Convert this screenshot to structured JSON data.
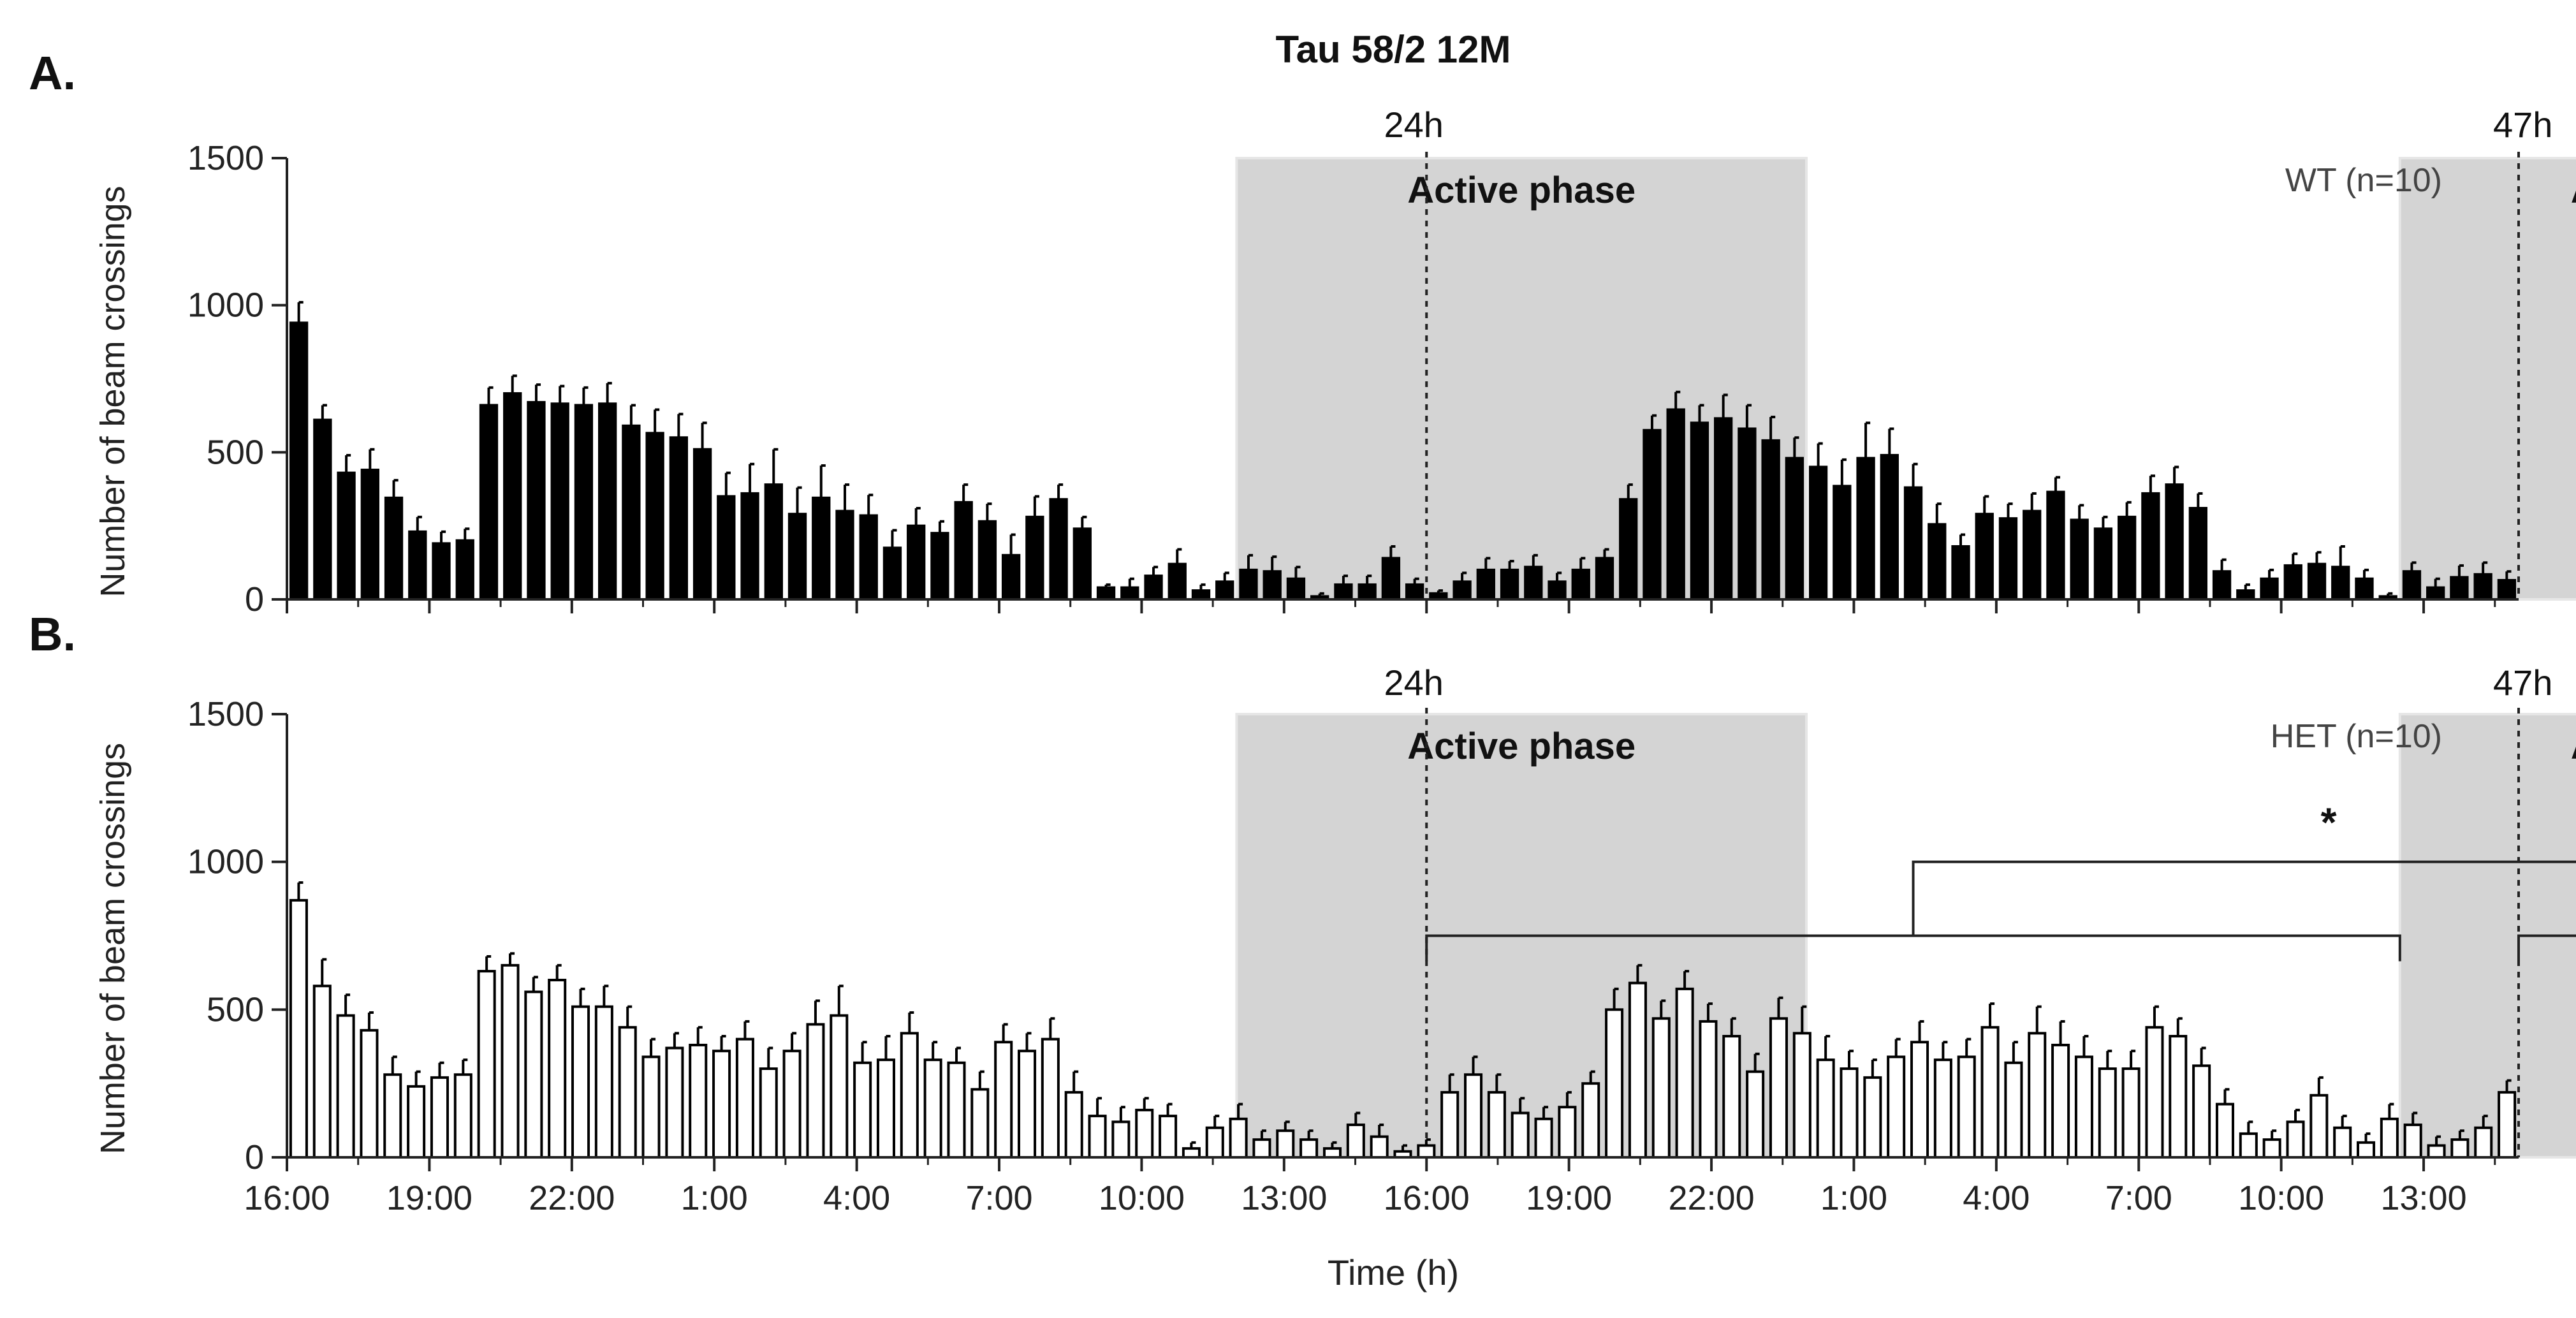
{
  "figure": {
    "title": "Tau 58/2 12M",
    "xlabel": "Time (h)",
    "x_ticks": [
      "16:00",
      "19:00",
      "22:00",
      "1:00",
      "4:00",
      "7:00",
      "10:00",
      "13:00",
      "16:00",
      "19:00",
      "22:00",
      "1:00",
      "4:00",
      "7:00",
      "10:00",
      "13:00"
    ],
    "marker_24h": "24h",
    "marker_47h": "47h",
    "phase_label": "Active phase",
    "significance_label": "*"
  },
  "chart_data": [
    {
      "type": "bar",
      "panel_letter": "A.",
      "ylabel": "Number of beam crossings",
      "ylim": [
        0,
        1500
      ],
      "yticks": [
        0,
        500,
        1000,
        1500
      ],
      "legend": "WT (n=10)",
      "legend_placement": "top-right",
      "bar_color": "#000000",
      "x_unit": "half-hour bins from 16:00 (0 to 47 h)",
      "active_phases": [
        [
          20,
          32
        ],
        [
          44.5,
          56.5
        ]
      ],
      "values": [
        940,
        610,
        430,
        440,
        345,
        230,
        190,
        200,
        660,
        700,
        670,
        665,
        660,
        665,
        590,
        565,
        550,
        510,
        350,
        360,
        390,
        290,
        345,
        300,
        285,
        175,
        250,
        225,
        330,
        265,
        150,
        280,
        340,
        240,
        40,
        40,
        80,
        120,
        30,
        60,
        100,
        95,
        70,
        10,
        50,
        50,
        140,
        50,
        20,
        60,
        100,
        100,
        110,
        60,
        100,
        140,
        340,
        575,
        645,
        600,
        615,
        580,
        540,
        480,
        450,
        385,
        480,
        490,
        380,
        255,
        180,
        290,
        275,
        300,
        365,
        270,
        240,
        280,
        360,
        390,
        310,
        95,
        30,
        70,
        115,
        120,
        110,
        70,
        10,
        95,
        40,
        75,
        85,
        65
      ],
      "errors": [
        70,
        50,
        60,
        70,
        60,
        50,
        40,
        40,
        60,
        60,
        60,
        60,
        60,
        70,
        70,
        80,
        80,
        90,
        80,
        100,
        120,
        90,
        110,
        90,
        70,
        60,
        60,
        40,
        60,
        60,
        70,
        70,
        50,
        40,
        10,
        30,
        30,
        50,
        20,
        30,
        50,
        50,
        40,
        10,
        30,
        30,
        40,
        20,
        10,
        30,
        40,
        30,
        40,
        30,
        40,
        30,
        50,
        50,
        60,
        60,
        80,
        80,
        80,
        70,
        80,
        90,
        120,
        90,
        80,
        70,
        40,
        60,
        50,
        60,
        50,
        50,
        40,
        50,
        60,
        60,
        50,
        40,
        20,
        30,
        40,
        40,
        70,
        30,
        10,
        30,
        30,
        40,
        40,
        30
      ]
    },
    {
      "type": "bar",
      "panel_letter": "B.",
      "ylabel": "Number of beam crossings",
      "ylim": [
        0,
        1500
      ],
      "yticks": [
        0,
        500,
        1000,
        1500
      ],
      "legend": "HET (n=10)",
      "legend_placement": "top-right",
      "bar_color": "#ffffff",
      "x_unit": "half-hour bins from 16:00 (0 to 47 h)",
      "active_phases": [
        [
          20,
          32
        ],
        [
          44.5,
          56.5
        ]
      ],
      "values": [
        870,
        580,
        480,
        430,
        280,
        240,
        270,
        280,
        630,
        650,
        560,
        600,
        510,
        510,
        440,
        340,
        370,
        380,
        360,
        400,
        300,
        360,
        450,
        480,
        320,
        330,
        420,
        330,
        320,
        230,
        390,
        360,
        400,
        220,
        140,
        120,
        160,
        140,
        30,
        100,
        130,
        60,
        90,
        60,
        30,
        110,
        70,
        20,
        40,
        220,
        280,
        220,
        150,
        130,
        170,
        250,
        500,
        590,
        470,
        570,
        460,
        410,
        290,
        470,
        420,
        330,
        300,
        270,
        340,
        390,
        330,
        340,
        440,
        320,
        420,
        380,
        340,
        300,
        300,
        440,
        410,
        310,
        180,
        80,
        60,
        120,
        210,
        100,
        50,
        130,
        110,
        40,
        60,
        100,
        220
      ],
      "errors": [
        60,
        90,
        70,
        60,
        60,
        50,
        50,
        50,
        50,
        40,
        50,
        50,
        60,
        70,
        70,
        60,
        50,
        60,
        50,
        60,
        70,
        60,
        80,
        100,
        70,
        80,
        70,
        60,
        50,
        60,
        60,
        60,
        70,
        70,
        60,
        50,
        40,
        40,
        20,
        40,
        50,
        30,
        30,
        30,
        20,
        40,
        40,
        20,
        20,
        60,
        60,
        60,
        50,
        40,
        50,
        40,
        70,
        60,
        60,
        60,
        60,
        60,
        60,
        70,
        90,
        80,
        60,
        60,
        60,
        70,
        60,
        60,
        80,
        70,
        90,
        80,
        70,
        60,
        60,
        70,
        60,
        60,
        50,
        40,
        30,
        40,
        60,
        40,
        30,
        50,
        40,
        30,
        30,
        40,
        40
      ]
    }
  ]
}
